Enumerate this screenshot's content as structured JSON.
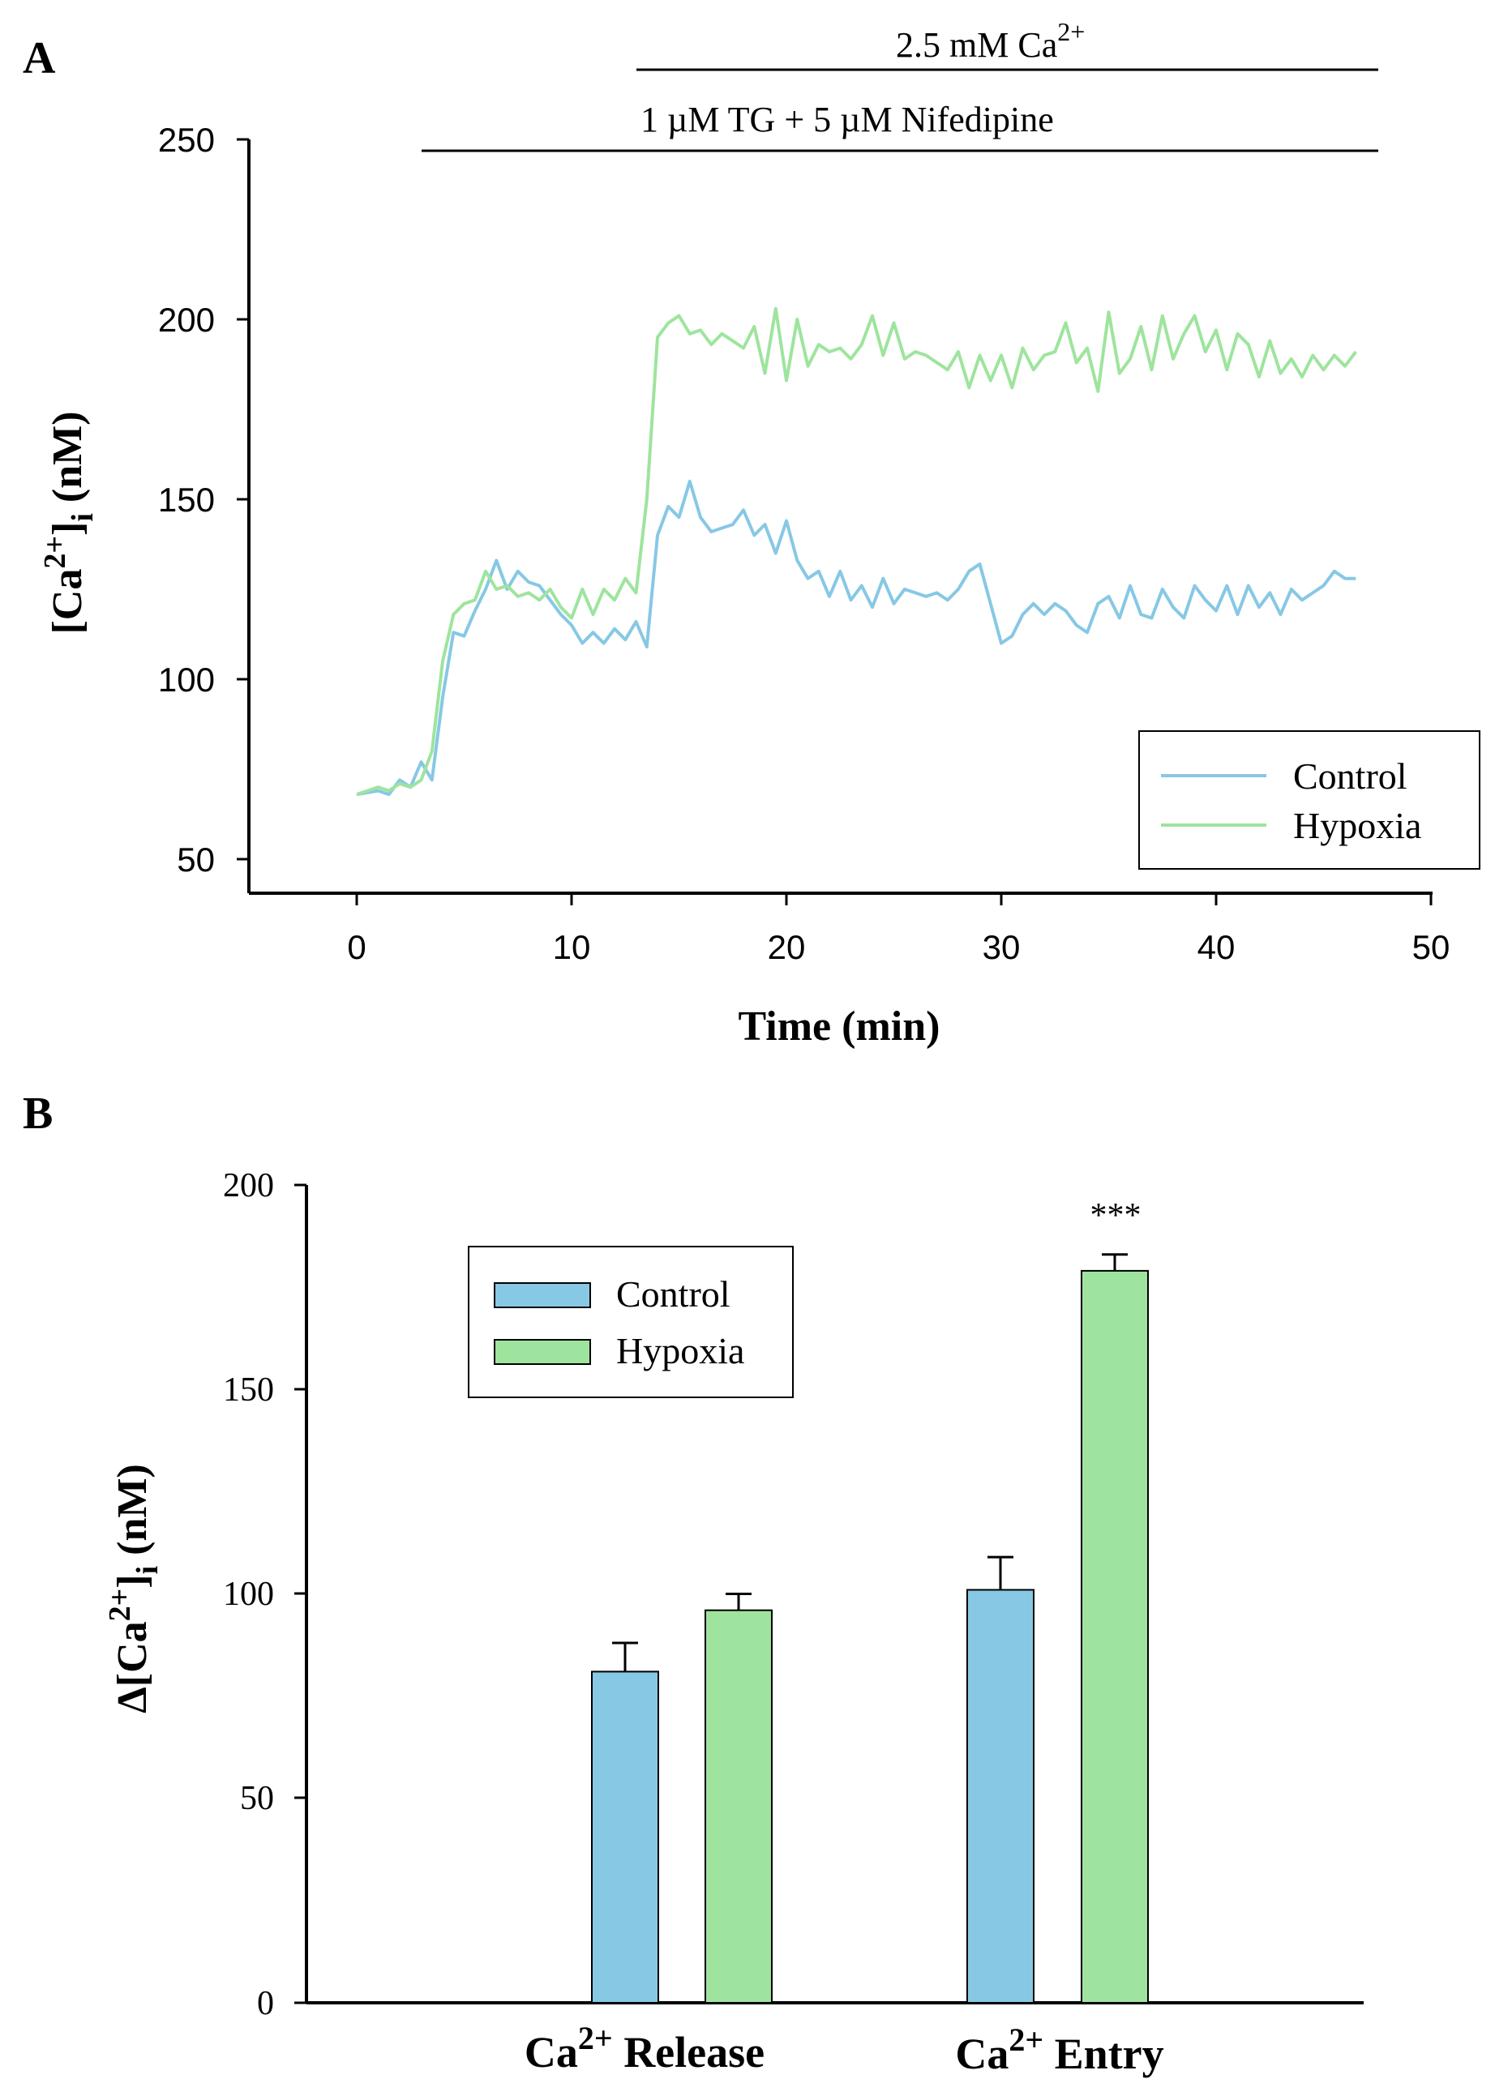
{
  "colors": {
    "control": "#87c8e4",
    "hypoxia": "#9ee49e",
    "axis": "#000000"
  },
  "chart_data": [
    {
      "id": "A",
      "type": "line",
      "panel_label": "A",
      "xlabel": "Time (min)",
      "ylabel_main": "[Ca",
      "ylabel_sup": "2+",
      "ylabel_close": "]",
      "ylabel_sub": "i",
      "ylabel_unit": " (nM)",
      "xlim": [
        -5,
        50
      ],
      "ylim": [
        40,
        250
      ],
      "xticks": [
        0,
        10,
        20,
        30,
        40,
        50
      ],
      "yticks": [
        50,
        100,
        150,
        200,
        250
      ],
      "annotations": [
        {
          "text_main": "2.5 mM Ca",
          "text_sup": "2+",
          "x_start": 13,
          "x_end": 47
        },
        {
          "text_main": "1 µM TG + 5 µM Nifedipine",
          "text_sup": "",
          "x_start": 3,
          "x_end": 47
        }
      ],
      "legend": [
        "Control",
        "Hypoxia"
      ],
      "series": [
        {
          "name": "Control",
          "x": [
            0,
            1,
            1.5,
            2,
            2.5,
            3,
            3.5,
            4,
            4.5,
            5,
            5.5,
            6,
            6.5,
            7,
            7.5,
            8,
            8.5,
            9,
            9.5,
            10,
            10.5,
            11,
            11.5,
            12,
            12.5,
            13,
            13.5,
            14,
            14.5,
            15,
            15.5,
            16,
            16.5,
            17,
            17.5,
            18,
            18.5,
            19,
            19.5,
            20,
            20.5,
            21,
            21.5,
            22,
            22.5,
            23,
            23.5,
            24,
            24.5,
            25,
            25.5,
            26,
            26.5,
            27,
            27.5,
            28,
            28.5,
            29,
            29.5,
            30,
            30.5,
            31,
            31.5,
            32,
            32.5,
            33,
            33.5,
            34,
            34.5,
            35,
            35.5,
            36,
            36.5,
            37,
            37.5,
            38,
            38.5,
            39,
            39.5,
            40,
            40.5,
            41,
            41.5,
            42,
            42.5,
            43,
            43.5,
            44,
            44.5,
            45,
            45.5,
            46,
            46.5
          ],
          "values": [
            68,
            69,
            68,
            72,
            70,
            77,
            72,
            95,
            113,
            112,
            119,
            125,
            133,
            125,
            130,
            127,
            126,
            122,
            118,
            115,
            110,
            113,
            110,
            114,
            111,
            116,
            109,
            140,
            148,
            145,
            155,
            145,
            141,
            142,
            143,
            147,
            140,
            143,
            135,
            144,
            133,
            128,
            130,
            123,
            130,
            122,
            126,
            120,
            128,
            121,
            125,
            124,
            123,
            124,
            122,
            125,
            130,
            132,
            121,
            110,
            112,
            118,
            121,
            118,
            121,
            119,
            115,
            113,
            121,
            123,
            117,
            126,
            118,
            117,
            125,
            120,
            117,
            126,
            122,
            119,
            126,
            118,
            126,
            120,
            124,
            118,
            125,
            122,
            124,
            126,
            130,
            128,
            128
          ]
        },
        {
          "name": "Hypoxia",
          "x": [
            0,
            1,
            1.5,
            2,
            2.5,
            3,
            3.5,
            4,
            4.5,
            5,
            5.5,
            6,
            6.5,
            7,
            7.5,
            8,
            8.5,
            9,
            9.5,
            10,
            10.5,
            11,
            11.5,
            12,
            12.5,
            13,
            13.5,
            14,
            14.5,
            15,
            15.5,
            16,
            16.5,
            17,
            17.5,
            18,
            18.5,
            19,
            19.5,
            20,
            20.5,
            21,
            21.5,
            22,
            22.5,
            23,
            23.5,
            24,
            24.5,
            25,
            25.5,
            26,
            26.5,
            27,
            27.5,
            28,
            28.5,
            29,
            29.5,
            30,
            30.5,
            31,
            31.5,
            32,
            32.5,
            33,
            33.5,
            34,
            34.5,
            35,
            35.5,
            36,
            36.5,
            37,
            37.5,
            38,
            38.5,
            39,
            39.5,
            40,
            40.5,
            41,
            41.5,
            42,
            42.5,
            43,
            43.5,
            44,
            44.5,
            45,
            45.5,
            46,
            46.5
          ],
          "values": [
            68,
            70,
            69,
            71,
            70,
            72,
            80,
            105,
            118,
            121,
            122,
            130,
            125,
            126,
            123,
            124,
            122,
            125,
            120,
            117,
            125,
            118,
            125,
            122,
            128,
            124,
            150,
            195,
            199,
            201,
            196,
            197,
            193,
            196,
            194,
            192,
            198,
            185,
            203,
            183,
            200,
            187,
            193,
            191,
            192,
            189,
            193,
            201,
            190,
            199,
            189,
            191,
            190,
            188,
            186,
            191,
            181,
            190,
            183,
            190,
            181,
            192,
            186,
            190,
            191,
            199,
            188,
            192,
            180,
            202,
            185,
            189,
            198,
            186,
            201,
            189,
            196,
            201,
            191,
            197,
            186,
            196,
            193,
            184,
            194,
            185,
            189,
            184,
            190,
            186,
            190,
            187,
            191
          ]
        }
      ]
    },
    {
      "id": "B",
      "type": "bar",
      "panel_label": "B",
      "categories": [
        "Release",
        "Entry"
      ],
      "category_prefix": "Ca",
      "category_sup": "2+",
      "ylabel_prefix": "Δ[Ca",
      "ylabel_sup": "2+",
      "ylabel_close": "]",
      "ylabel_sub": "i",
      "ylabel_unit": " (nM)",
      "ylim": [
        0,
        200
      ],
      "yticks": [
        0,
        50,
        100,
        150,
        200
      ],
      "legend": [
        "Control",
        "Hypoxia"
      ],
      "series": [
        {
          "name": "Control",
          "values": [
            81,
            101
          ],
          "errors": [
            7,
            8
          ]
        },
        {
          "name": "Hypoxia",
          "values": [
            96,
            179
          ],
          "errors": [
            4,
            4
          ]
        }
      ],
      "significance": [
        {
          "category": "Entry",
          "series": "Hypoxia",
          "label": "***"
        }
      ]
    }
  ]
}
